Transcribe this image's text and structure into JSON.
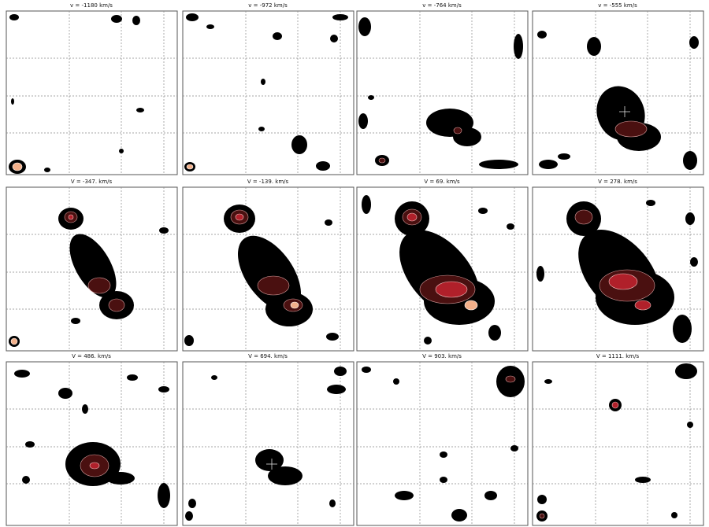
{
  "panels": [
    {
      "title": "v =  -1180 km/s"
    },
    {
      "title": "v =  -972 km/s"
    },
    {
      "title": "v =  -764 km/s"
    },
    {
      "title": "v =  -555 km/s"
    },
    {
      "title": "V =  -347. km/s"
    },
    {
      "title": "V =  -139. km/s"
    },
    {
      "title": "V =  69. km/s"
    },
    {
      "title": "V =  278. km/s"
    },
    {
      "title": "V =  486. km/s"
    },
    {
      "title": "V =  694. km/s"
    },
    {
      "title": "V =  903. km/s"
    },
    {
      "title": "V =  1111. km/s"
    }
  ]
}
